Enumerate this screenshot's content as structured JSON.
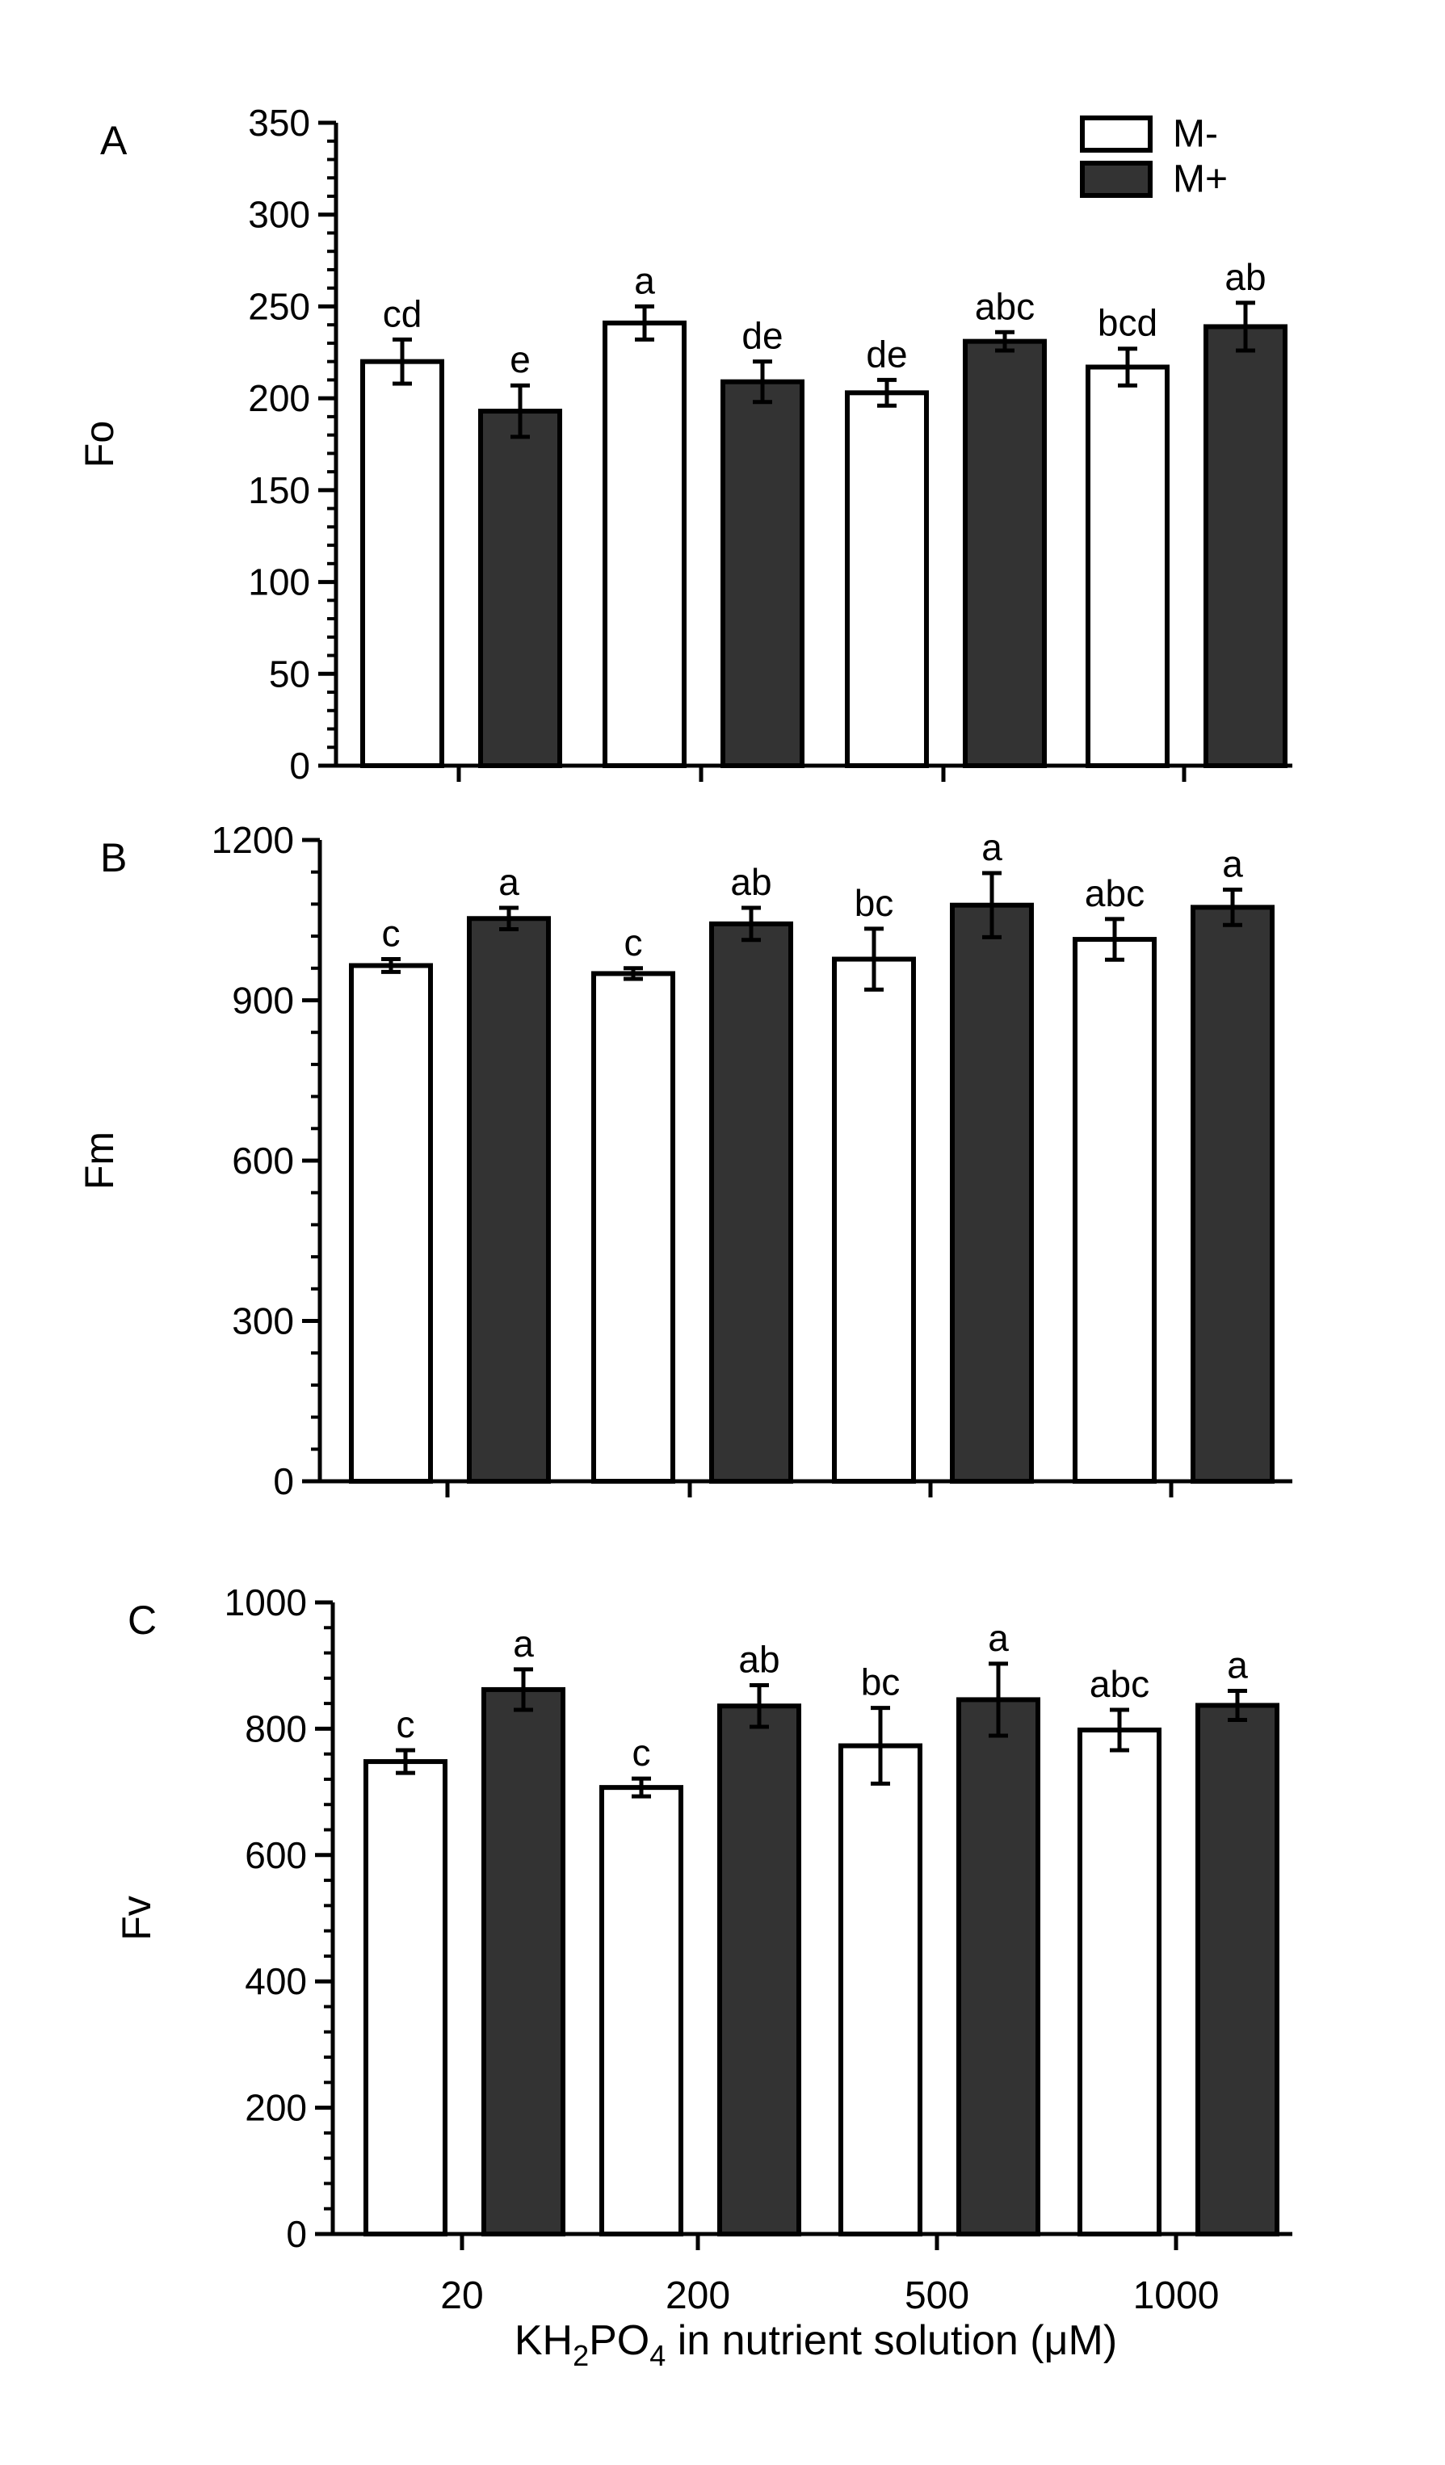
{
  "chart_data": [
    {
      "type": "bar",
      "panel": "A",
      "ylabel": "Fo",
      "ylim": [
        0,
        350
      ],
      "yticks": [
        0,
        50,
        100,
        150,
        200,
        250,
        300,
        350
      ],
      "categories": [
        "20",
        "200",
        "500",
        "1000"
      ],
      "series": [
        {
          "name": "M-",
          "color": "#ffffff",
          "values": [
            220,
            241,
            203,
            217
          ],
          "errors": [
            12,
            9,
            7,
            10
          ],
          "letters": [
            "cd",
            "a",
            "de",
            "bcd"
          ]
        },
        {
          "name": "M+",
          "color": "#333333",
          "values": [
            193,
            209,
            231,
            239
          ],
          "errors": [
            14,
            11,
            5,
            13
          ],
          "letters": [
            "e",
            "de",
            "abc",
            "ab"
          ]
        }
      ],
      "legend": {
        "placement": "top-right",
        "entries": [
          "M-",
          "M+"
        ]
      }
    },
    {
      "type": "bar",
      "panel": "B",
      "ylabel": "Fm",
      "ylim": [
        0,
        1200
      ],
      "yticks": [
        0,
        300,
        600,
        900,
        1200
      ],
      "categories": [
        "20",
        "200",
        "500",
        "1000"
      ],
      "series": [
        {
          "name": "M-",
          "color": "#ffffff",
          "values": [
            965,
            950,
            977,
            1014
          ],
          "errors": [
            12,
            10,
            57,
            38
          ],
          "letters": [
            "c",
            "c",
            "bc",
            "abc"
          ]
        },
        {
          "name": "M+",
          "color": "#333333",
          "values": [
            1053,
            1043,
            1078,
            1074
          ],
          "errors": [
            20,
            30,
            60,
            33
          ],
          "letters": [
            "a",
            "ab",
            "a",
            "a"
          ]
        }
      ]
    },
    {
      "type": "bar",
      "panel": "C",
      "ylabel": "Fv",
      "ylim": [
        0,
        1000
      ],
      "yticks": [
        0,
        200,
        400,
        600,
        800,
        1000
      ],
      "categories": [
        "20",
        "200",
        "500",
        "1000"
      ],
      "series": [
        {
          "name": "M-",
          "color": "#ffffff",
          "values": [
            748,
            707,
            773,
            798
          ],
          "errors": [
            18,
            14,
            60,
            32
          ],
          "letters": [
            "c",
            "c",
            "bc",
            "abc"
          ]
        },
        {
          "name": "M+",
          "color": "#333333",
          "values": [
            862,
            836,
            846,
            837
          ],
          "errors": [
            32,
            33,
            57,
            23
          ],
          "letters": [
            "a",
            "ab",
            "a",
            "a"
          ]
        }
      ]
    }
  ],
  "xaxis": {
    "label_main": "KH",
    "label_sub1": "2",
    "label_mid": "PO",
    "label_sub2": "4",
    "label_rest": " in nutrient solution (μM)",
    "categories": [
      "20",
      "200",
      "500",
      "1000"
    ]
  }
}
